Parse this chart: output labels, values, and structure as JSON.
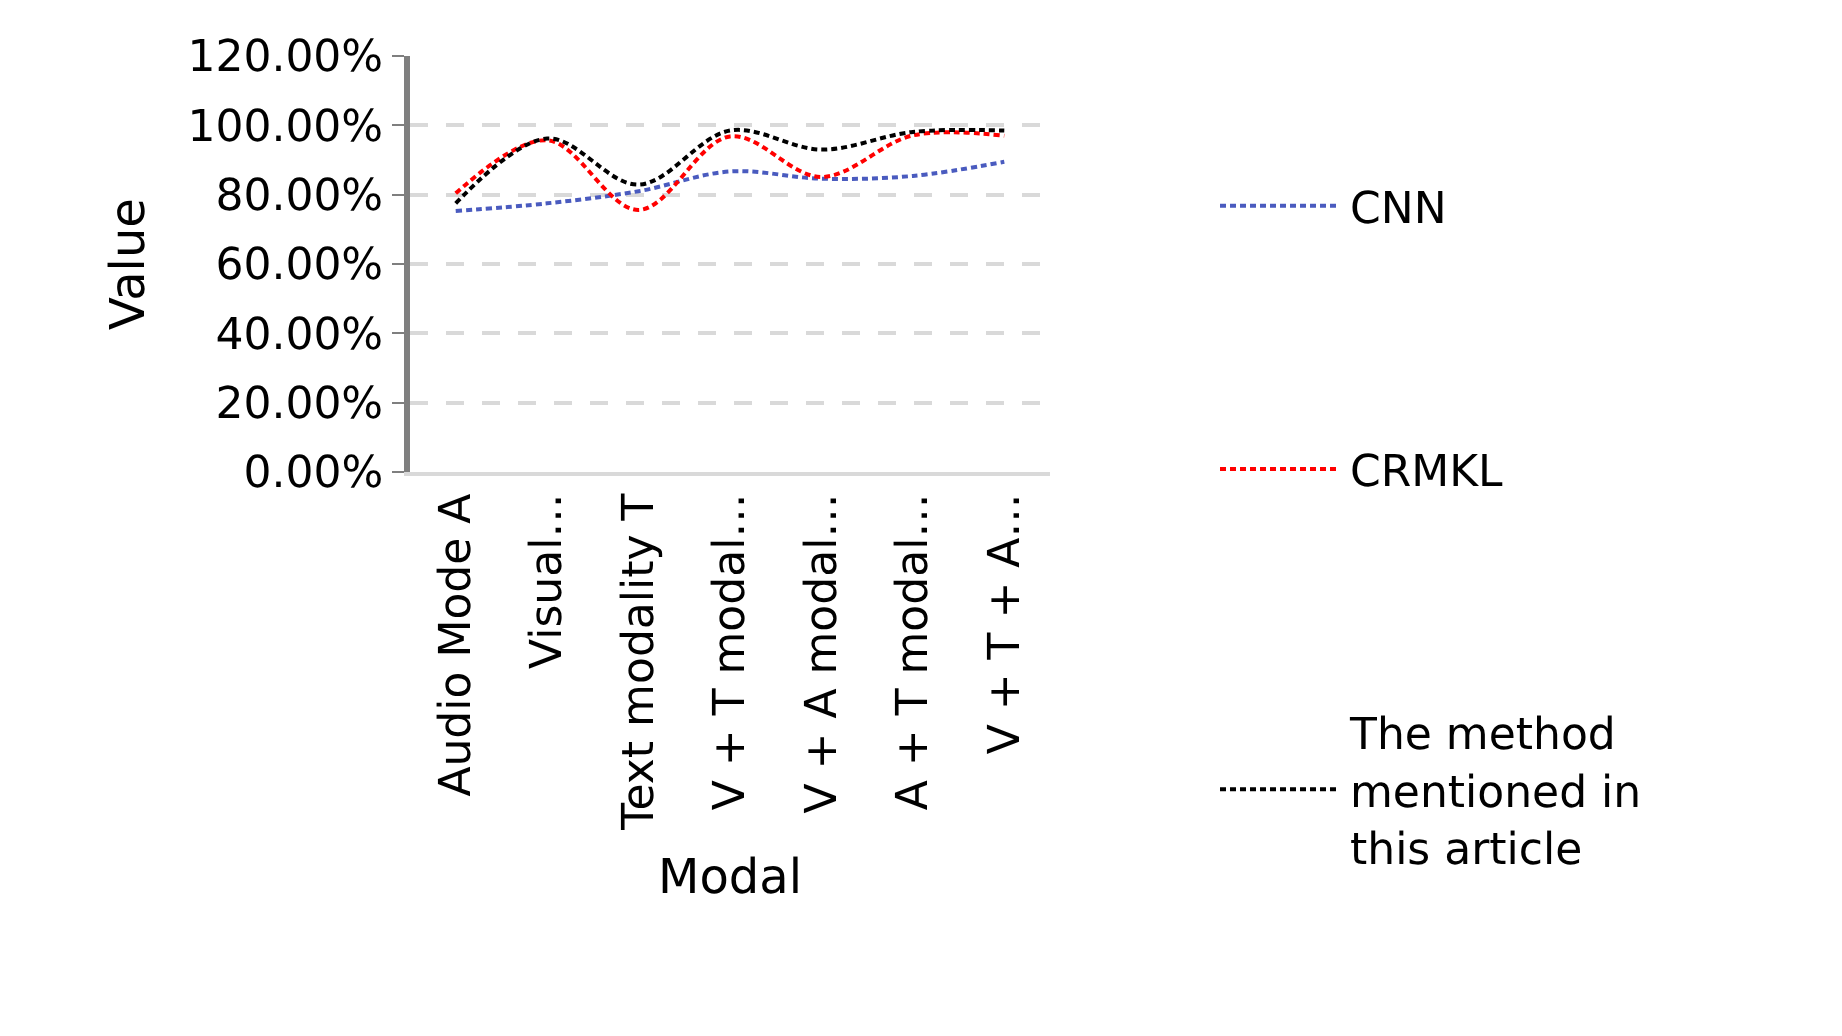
{
  "chart_data": {
    "type": "line",
    "xlabel": "Modal",
    "ylabel": "Value",
    "categories": [
      "Audio Mode A",
      "Visual…",
      "Text modality T",
      "V + T modal…",
      "V + A modal…",
      "A + T modal…",
      "V + T + A…"
    ],
    "series": [
      {
        "name": "CNN",
        "color": "#4a5bbf",
        "values": [
          75.3,
          77.5,
          81,
          86.7,
          84.6,
          85.4,
          89.5
        ]
      },
      {
        "name": "CRMKL",
        "color": "#ff0000",
        "values": [
          80.4,
          95.7,
          75.6,
          96.8,
          85.1,
          97.1,
          97
        ]
      },
      {
        "name": "The method mentioned in this article",
        "color": "#000000",
        "values": [
          77.5,
          96.2,
          82.9,
          98.5,
          93,
          98.1,
          98.5
        ]
      }
    ],
    "ylim": [
      0,
      120
    ],
    "yticks": [
      {
        "value": 0,
        "label": "0.00%"
      },
      {
        "value": 20,
        "label": "20.00%"
      },
      {
        "value": 40,
        "label": "40.00%"
      },
      {
        "value": 60,
        "label": "60.00%"
      },
      {
        "value": 80,
        "label": "80.00%"
      },
      {
        "value": 100,
        "label": "100.00%"
      },
      {
        "value": 120,
        "label": "120.00%"
      }
    ],
    "grid": "y",
    "legend": "right",
    "line_style": "dashed",
    "marker": "none"
  }
}
